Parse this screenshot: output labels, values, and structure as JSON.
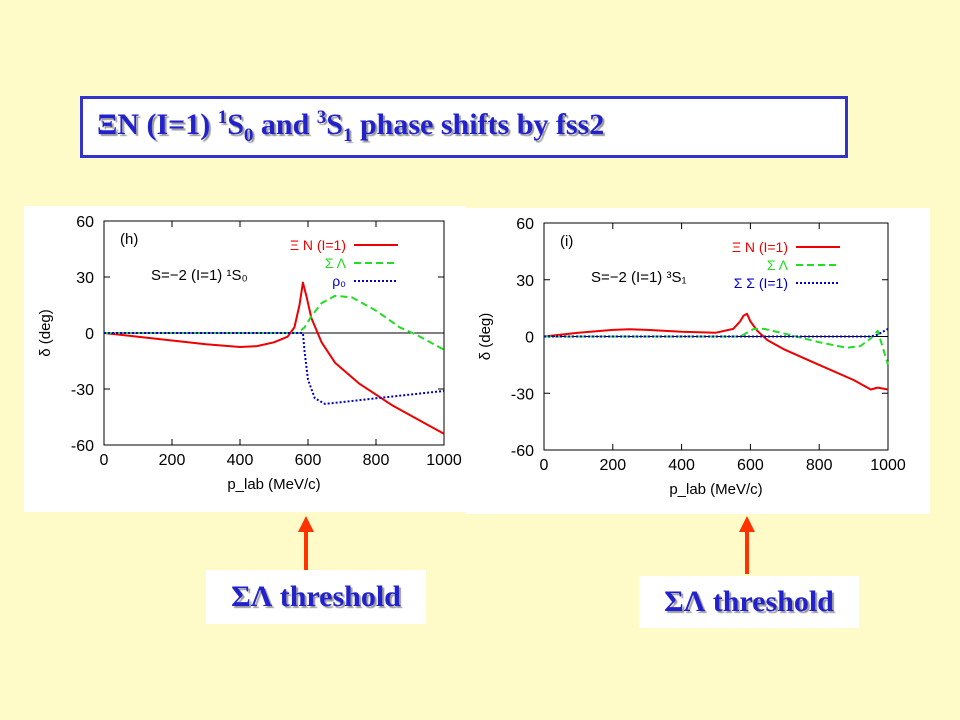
{
  "title": {
    "part1": "ΞN (I=1) ",
    "s0_sup": "1",
    "s0_base": "S",
    "s0_sub": "0",
    "mid": " and ",
    "s1_sup": "3",
    "s1_base": "S",
    "s1_sub": "1",
    "tail": " phase shifts by fss2"
  },
  "threshold_label": "ΣΛ threshold",
  "colors": {
    "background": "#fffbc8",
    "title_text": "#2222cc",
    "title_border": "#3333cc",
    "arrow": "#ff3300"
  },
  "chart_data": [
    {
      "type": "line",
      "panel_label": "(h)",
      "system_label": "S=−2 (I=1) ¹S₀",
      "xlabel": "p_lab (MeV/c)",
      "ylabel": "δ (deg)",
      "xlim": [
        0,
        1000
      ],
      "ylim": [
        -60,
        60
      ],
      "xticks": [
        0,
        200,
        400,
        600,
        800,
        1000
      ],
      "yticks": [
        60,
        30,
        0,
        -30,
        -60
      ],
      "grid": false,
      "legend_position": "top-right",
      "series": [
        {
          "name": "Ξ N (I=1)",
          "color": "#ee0000",
          "dash": "solid",
          "x": [
            0,
            100,
            200,
            300,
            400,
            450,
            500,
            540,
            560,
            575,
            585,
            595,
            610,
            640,
            680,
            750,
            850,
            950,
            1000
          ],
          "y": [
            0,
            -2,
            -4,
            -6,
            -7.5,
            -7,
            -5,
            -2,
            3,
            15,
            27,
            20,
            8,
            -5,
            -16,
            -27,
            -39,
            -49,
            -54
          ]
        },
        {
          "name": "Σ Λ",
          "color": "#22dd22",
          "dash": "dashed",
          "x": [
            0,
            100,
            200,
            300,
            400,
            500,
            570,
            590,
            610,
            640,
            680,
            730,
            800,
            870,
            920,
            1000
          ],
          "y": [
            0,
            0,
            0,
            0,
            0,
            0,
            0,
            3,
            9,
            16,
            20,
            19,
            12,
            3,
            -1,
            -9
          ]
        },
        {
          "name": "ρ₀",
          "color": "#0000cc",
          "dash": "dotted",
          "x": [
            0,
            100,
            200,
            300,
            400,
            500,
            570,
            585,
            590,
            600,
            620,
            650,
            700,
            800,
            900,
            1000
          ],
          "y": [
            0,
            0,
            0,
            0,
            0,
            0,
            0,
            0,
            -10,
            -25,
            -35,
            -38,
            -37,
            -35,
            -33,
            -31
          ]
        }
      ]
    },
    {
      "type": "line",
      "panel_label": "(i)",
      "system_label": "S=−2 (I=1) ³S₁",
      "xlabel": "p_lab (MeV/c)",
      "ylabel": "δ (deg)",
      "xlim": [
        0,
        1000
      ],
      "ylim": [
        -60,
        60
      ],
      "xticks": [
        0,
        200,
        400,
        600,
        800,
        1000
      ],
      "yticks": [
        60,
        30,
        0,
        -30,
        -60
      ],
      "grid": false,
      "legend_position": "top-right",
      "series": [
        {
          "name": "Ξ N (I=1)",
          "color": "#ee0000",
          "dash": "solid",
          "x": [
            0,
            100,
            200,
            250,
            300,
            400,
            500,
            550,
            570,
            580,
            590,
            600,
            620,
            650,
            700,
            800,
            900,
            950,
            970,
            1000
          ],
          "y": [
            0,
            2,
            3.5,
            3.8,
            3.5,
            2.5,
            2,
            4,
            8,
            11,
            12,
            8,
            3,
            -2,
            -7,
            -15,
            -23,
            -28,
            -27,
            -28
          ]
        },
        {
          "name": "Σ Λ",
          "color": "#22dd22",
          "dash": "dashed",
          "x": [
            0,
            100,
            200,
            300,
            400,
            500,
            570,
            590,
            610,
            640,
            700,
            800,
            880,
            920,
            950,
            970,
            1000
          ],
          "y": [
            0,
            0,
            0,
            0,
            0,
            0,
            0,
            2,
            4,
            4,
            1.5,
            -3,
            -6,
            -5,
            -1,
            3,
            -15
          ]
        },
        {
          "name": "Σ Σ (I=1)",
          "color": "#0000cc",
          "dash": "dotted",
          "x": [
            0,
            200,
            400,
            600,
            800,
            900,
            950,
            970,
            1000
          ],
          "y": [
            0,
            0,
            0,
            0,
            0,
            0,
            0,
            1,
            4
          ]
        }
      ]
    }
  ]
}
